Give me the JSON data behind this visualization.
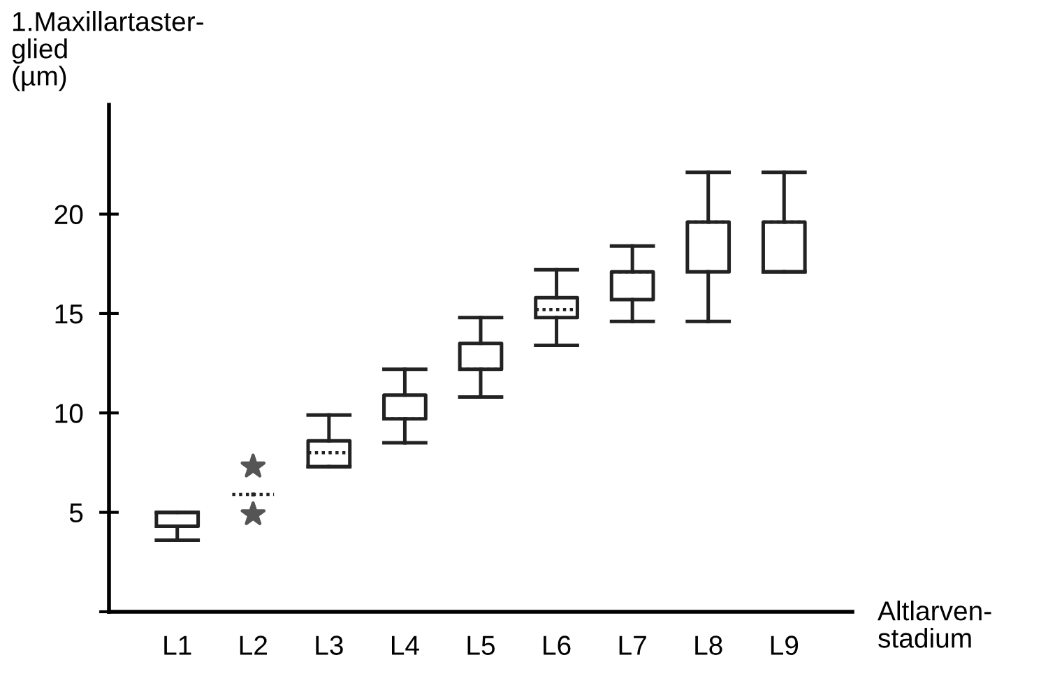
{
  "chart_data": {
    "type": "box",
    "ylabel": "1.Maxillartaster-\nglied\n(µm)",
    "xlabel": "Altlarven-\nstadium",
    "categories": [
      "L1",
      "L2",
      "L3",
      "L4",
      "L5",
      "L6",
      "L7",
      "L8",
      "L9"
    ],
    "boxes": [
      {
        "low": 3.6,
        "q1": 4.3,
        "median": 5.0,
        "q3": 5.0,
        "high": 5.0
      },
      {
        "low": 5.9,
        "q1": 5.9,
        "median": 5.9,
        "q3": 5.9,
        "high": 5.9
      },
      {
        "low": 7.3,
        "q1": 7.3,
        "median": 8.0,
        "q3": 8.6,
        "high": 9.9
      },
      {
        "low": 8.5,
        "q1": 9.7,
        "median": 9.7,
        "q3": 10.9,
        "high": 12.2
      },
      {
        "low": 10.8,
        "q1": 12.2,
        "median": 12.2,
        "q3": 13.5,
        "high": 14.8
      },
      {
        "low": 13.4,
        "q1": 14.8,
        "median": 15.2,
        "q3": 15.8,
        "high": 17.2
      },
      {
        "low": 14.6,
        "q1": 15.7,
        "median": 17.1,
        "q3": 17.1,
        "high": 18.4
      },
      {
        "low": 14.6,
        "q1": 17.1,
        "median": 19.6,
        "q3": 19.6,
        "high": 22.1
      },
      {
        "low": 17.1,
        "q1": 17.1,
        "median": 19.6,
        "q3": 19.6,
        "high": 22.1
      }
    ],
    "series": [
      {
        "type": "scatter",
        "x": [
          "L2",
          "L2"
        ],
        "values": [
          7.3,
          4.9
        ],
        "color": "#555555",
        "marker": "star"
      }
    ],
    "ylim": [
      0,
      25.5
    ],
    "yticks": [
      {
        "value": 0,
        "label": null
      },
      5,
      10,
      15,
      20
    ],
    "grid": false,
    "legend": false
  }
}
